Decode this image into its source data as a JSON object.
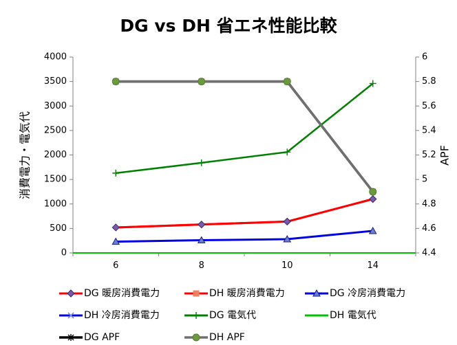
{
  "chart_data": {
    "type": "line",
    "title": "DG vs DH 省エネ性能比較",
    "categories": [
      "6",
      "8",
      "10",
      "14"
    ],
    "ylabel": "消費電力・電気代",
    "y2label": "APF",
    "ylim": [
      0,
      4000
    ],
    "y2lim": [
      4.4,
      6
    ],
    "yticks": [
      "0",
      "500",
      "1000",
      "1500",
      "2000",
      "2500",
      "3000",
      "3500",
      "4000"
    ],
    "y2ticks": [
      "4.4",
      "4.6",
      "4.8",
      "5",
      "5.2",
      "5.4",
      "5.6",
      "5.8",
      "6"
    ],
    "grid": false,
    "legend_position": "bottom",
    "series": [
      {
        "name": "DG 暖房消費電力",
        "axis": "left",
        "values": [
          520,
          580,
          640,
          1100
        ],
        "color": "#ff0000",
        "marker": "diamond",
        "marker_color": "#7a5aa8"
      },
      {
        "name": "DH 暖房消費電力",
        "axis": "left",
        "values": [
          520,
          580,
          640,
          1100
        ],
        "color": "#ff0000",
        "marker": "square",
        "marker_color": "#f08060"
      },
      {
        "name": "DG 冷房消費電力",
        "axis": "left",
        "values": [
          230,
          260,
          280,
          450
        ],
        "color": "#0000e0",
        "marker": "triangle",
        "marker_color": "#6a7fd0"
      },
      {
        "name": "DH 冷房消費電力",
        "axis": "left",
        "values": [
          230,
          260,
          280,
          450
        ],
        "color": "#0000e0",
        "marker": "x",
        "marker_color": "#7a8cf0"
      },
      {
        "name": "DG 電気代",
        "axis": "left",
        "values": [
          1630,
          1840,
          2060,
          3460
        ],
        "color": "#008000",
        "marker": "plus",
        "marker_color": "#008000"
      },
      {
        "name": "DH 電気代",
        "axis": "left",
        "values": [
          0,
          0,
          0,
          0
        ],
        "color": "#00c000",
        "marker": "none",
        "marker_color": "#00c000"
      },
      {
        "name": "DG APF",
        "axis": "right",
        "values": [
          5.8,
          5.8,
          5.8,
          4.9
        ],
        "color": "#000000",
        "marker": "star",
        "marker_color": "#000000"
      },
      {
        "name": "DH APF",
        "axis": "right",
        "values": [
          5.8,
          5.8,
          5.8,
          4.9
        ],
        "color": "#707070",
        "marker": "circle",
        "marker_color": "#6a9a3a"
      }
    ]
  }
}
